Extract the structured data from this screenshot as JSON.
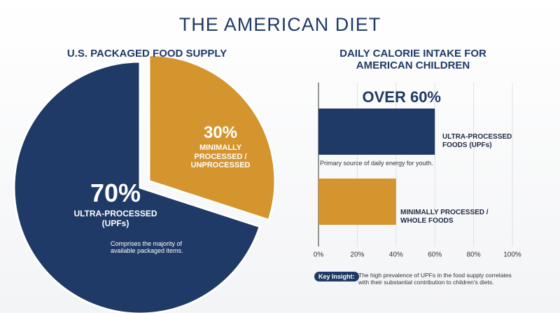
{
  "title": "THE AMERICAN DIET",
  "chart_data": [
    {
      "type": "pie",
      "title": "U.S. PACKAGED FOOD SUPPLY",
      "categories": [
        "ULTRA-PROCESSED (UPFs)",
        "MINIMALLY PROCESSED / UNPROCESSED"
      ],
      "values": [
        70,
        30
      ],
      "value_labels": [
        "70%",
        "30%"
      ],
      "colors": [
        "#1f3a66",
        "#d4952e"
      ],
      "annotations": [
        "Comprises the majority of available packaged items."
      ]
    },
    {
      "type": "hbar",
      "title": "DAILY CALORIE INTAKE FOR AMERICAN CHILDREN",
      "categories": [
        "ULTRA-PROCESSED FOODS (UPFs)",
        "MINIMALLY PROCESSED / WHOLE FOODS"
      ],
      "values": [
        60,
        40
      ],
      "value_labels": [
        "OVER 60%",
        null
      ],
      "colors": [
        "#1f3a66",
        "#d4952e"
      ],
      "xlim": [
        0,
        100
      ],
      "xticks": [
        {
          "value": 0,
          "label": "0%"
        },
        {
          "value": 20,
          "label": "20%"
        },
        {
          "value": 40,
          "label": "40%"
        },
        {
          "value": 60,
          "label": "60%"
        },
        {
          "value": 80,
          "label": "80%"
        },
        {
          "value": 100,
          "label": "100%"
        }
      ],
      "grid": true,
      "annotations": [
        "Primary source of daily energy for youth."
      ]
    }
  ],
  "key_insight": {
    "label": "Key Insight:",
    "text": "The high prevalence of UPFs in the food supply correlates with their substantial contribution to children's diets."
  }
}
